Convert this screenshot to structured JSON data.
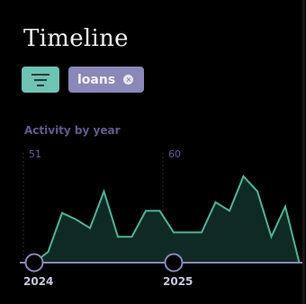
{
  "header": {
    "title": "Timeline"
  },
  "filters": {
    "active_chip": "loans"
  },
  "colors": {
    "accent": "#6ec3b2",
    "chip": "#8a88b8",
    "line": "#4fb39a",
    "fill": "#0f2a24",
    "axis": "#8a88b8",
    "muted": "#5f5d8e"
  },
  "chart_data": {
    "type": "area",
    "title": "Activity by year",
    "values": [
      0,
      5,
      23,
      20,
      16,
      33,
      12,
      12,
      24,
      24,
      14,
      14,
      14,
      28,
      24,
      40,
      33,
      12,
      26,
      0
    ],
    "year_markers": [
      {
        "label": "2024",
        "index": 0,
        "value_label": "51"
      },
      {
        "label": "2025",
        "index": 10,
        "value_label": "60"
      }
    ],
    "ylim": [
      0,
      45
    ]
  }
}
